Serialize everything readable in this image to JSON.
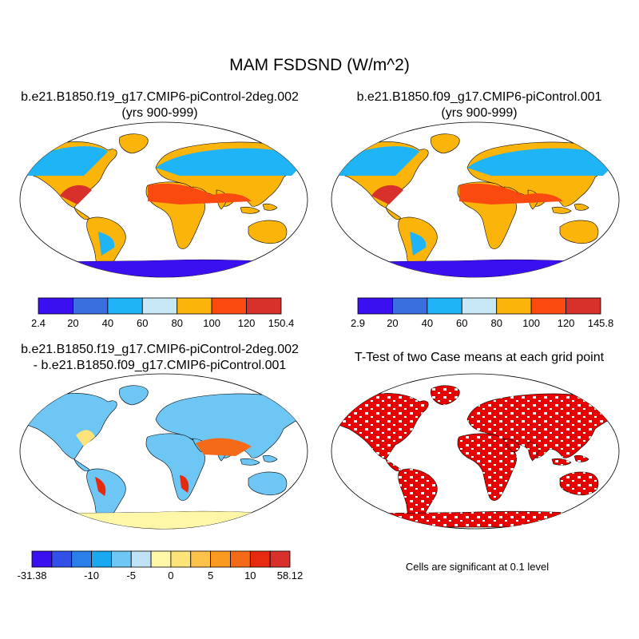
{
  "title": "MAM FSDSND (W/m^2)",
  "panels": [
    {
      "line1": "b.e21.B1850.f19_g17.CMIP6-piControl-2deg.002",
      "line2": "(yrs 900-999)"
    },
    {
      "line1": "b.e21.B1850.f09_g17.CMIP6-piControl.001",
      "line2": "(yrs 900-999)"
    },
    {
      "line1": "b.e21.B1850.f19_g17.CMIP6-piControl-2deg.002",
      "line2": "- b.e21.B1850.f09_g17.CMIP6-piControl.001"
    },
    {
      "line1": "T-Test of two Case means at each grid point",
      "line2": ""
    }
  ],
  "colorbars": [
    {
      "labels": [
        "2.4",
        "20",
        "40",
        "60",
        "80",
        "100",
        "120",
        "150.4"
      ],
      "colors": [
        "#3a10f0",
        "#3a6fe0",
        "#1fb4f5",
        "#c7e8f7",
        "#fbb40a",
        "#fa4a10",
        "#d8302a"
      ]
    },
    {
      "labels": [
        "2.9",
        "20",
        "40",
        "60",
        "80",
        "100",
        "120",
        "145.8"
      ],
      "colors": [
        "#3a10f0",
        "#3a6fe0",
        "#1fb4f5",
        "#c7e8f7",
        "#fbb40a",
        "#fa4a10",
        "#d8302a"
      ]
    },
    {
      "labels": [
        "-31.38",
        "-10",
        "-5",
        "0",
        "5",
        "10",
        "58.12"
      ],
      "colors": [
        "#3a10f0",
        "#3050e8",
        "#2a7fe8",
        "#1aa8f0",
        "#6dc6f3",
        "#bfe3f5",
        "#fff7a8",
        "#fde37a",
        "#fcc24a",
        "#fa9a20",
        "#f56a18",
        "#e52a10",
        "#d8302a"
      ]
    }
  ],
  "significance_note": "Cells are significant at 0.1 level",
  "colors": {
    "significant": "#e80000",
    "land_outline": "#000000"
  }
}
